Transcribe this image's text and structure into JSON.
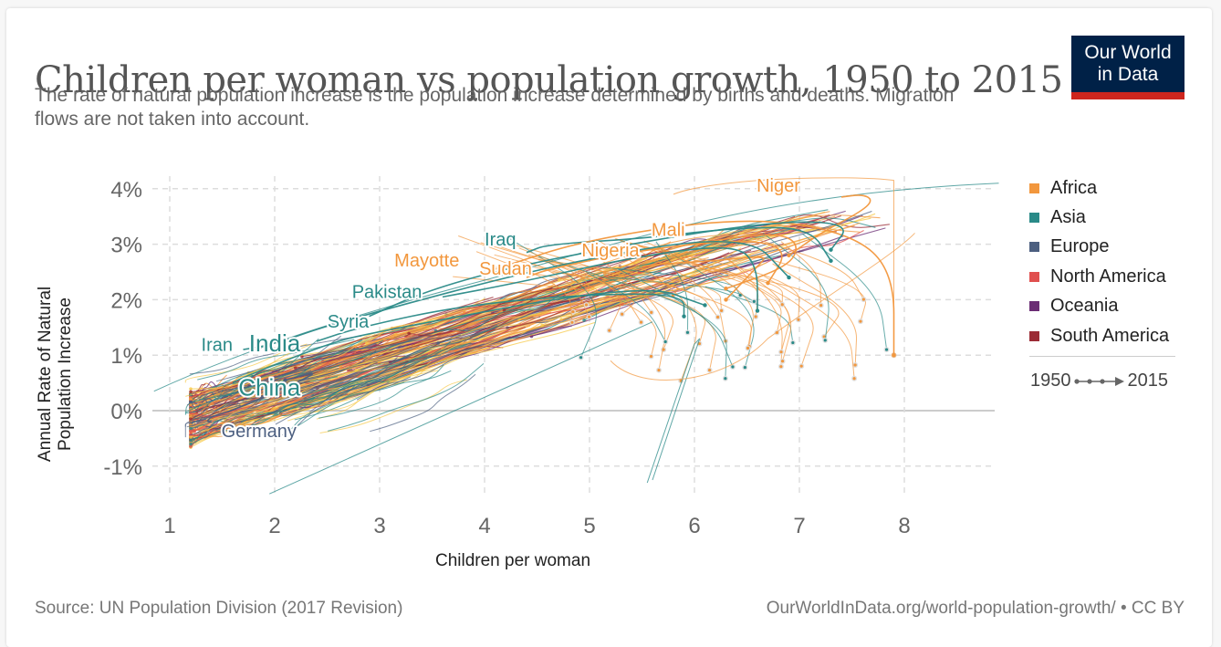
{
  "header": {
    "title": "Children per woman vs population growth, 1950 to 2015",
    "subtitle": "The rate of natural population increase is the population increase determined by births and deaths. Migration flows are not taken into account.",
    "logo_line1": "Our World",
    "logo_line2": "in Data"
  },
  "legend": {
    "items": [
      {
        "label": "Africa",
        "color": "#f2973d"
      },
      {
        "label": "Asia",
        "color": "#2a8a88"
      },
      {
        "label": "Europe",
        "color": "#4c5f80"
      },
      {
        "label": "North America",
        "color": "#e0504f"
      },
      {
        "label": "Oceania",
        "color": "#6b2d74"
      },
      {
        "label": "South America",
        "color": "#9b2b35"
      }
    ],
    "timeline_start": "1950",
    "timeline_end": "2015"
  },
  "footer": {
    "source": "Source: UN Population Division (2017 Revision)",
    "link": "OurWorldInData.org/world-population-growth/",
    "license": " • CC BY"
  },
  "chart_data": {
    "type": "scatter",
    "connected": true,
    "title": "Children per woman vs population growth, 1950 to 2015",
    "xlabel": "Children per woman",
    "ylabel": "Annual Rate of Natural Population Increase",
    "xlim": [
      0.85,
      8.9
    ],
    "ylim": [
      -1.5,
      4.2
    ],
    "x_ticks": [
      1,
      2,
      3,
      4,
      5,
      6,
      7,
      8
    ],
    "x_tick_labels": [
      "1",
      "2",
      "3",
      "4",
      "5",
      "6",
      "7",
      "8"
    ],
    "y_ticks": [
      4,
      3,
      2,
      1,
      0,
      -1
    ],
    "y_tick_labels": [
      "4%",
      "3%",
      "2%",
      "1%",
      "0%",
      "-1%"
    ],
    "grid": true,
    "legend_position": "right",
    "time_range": [
      "1950",
      "2015"
    ],
    "highlight_color_africa_alt": "#f7c948",
    "annotations": [
      {
        "label": "Niger",
        "region": "Africa",
        "x": 6.8,
        "y": 3.95
      },
      {
        "label": "Mali",
        "region": "Africa",
        "x": 5.75,
        "y": 3.15
      },
      {
        "label": "Nigeria",
        "region": "Africa",
        "x": 5.2,
        "y": 2.78
      },
      {
        "label": "Iraq",
        "region": "Asia",
        "x": 4.15,
        "y": 2.98
      },
      {
        "label": "Mayotte",
        "region": "Africa",
        "x": 3.45,
        "y": 2.6
      },
      {
        "label": "Sudan",
        "region": "Africa",
        "x": 4.2,
        "y": 2.45
      },
      {
        "label": "Pakistan",
        "region": "Asia",
        "x": 3.07,
        "y": 2.03
      },
      {
        "label": "Syria",
        "region": "Asia",
        "x": 2.7,
        "y": 1.5
      },
      {
        "label": "Iran",
        "region": "Asia",
        "x": 1.45,
        "y": 1.08
      },
      {
        "label": "India",
        "region": "Asia",
        "x": 2.0,
        "y": 1.07,
        "large": true
      },
      {
        "label": "China",
        "region": "Asia",
        "x": 1.95,
        "y": 0.27,
        "large": true
      },
      {
        "label": "Germany",
        "region": "Europe",
        "x": 1.85,
        "y": -0.48
      }
    ],
    "series": [
      {
        "name": "Niger",
        "region": "Africa",
        "points": [
          [
            6.9,
            2.8
          ],
          [
            7.2,
            3.2
          ],
          [
            7.6,
            3.6
          ],
          [
            7.7,
            3.8
          ],
          [
            7.6,
            3.9
          ],
          [
            7.4,
            3.85
          ]
        ]
      },
      {
        "name": "Mali",
        "region": "Africa",
        "points": [
          [
            6.3,
            2.2
          ],
          [
            6.9,
            2.6
          ],
          [
            7.0,
            3.0
          ],
          [
            6.8,
            3.2
          ],
          [
            6.3,
            3.1
          ],
          [
            6.0,
            3.0
          ]
        ]
      },
      {
        "name": "Nigeria",
        "region": "Africa",
        "points": [
          [
            6.3,
            2.0
          ],
          [
            6.6,
            2.6
          ],
          [
            6.7,
            2.8
          ],
          [
            6.2,
            2.7
          ],
          [
            5.7,
            2.65
          ],
          [
            5.5,
            2.6
          ]
        ]
      },
      {
        "name": "Iraq",
        "region": "Asia",
        "points": [
          [
            7.3,
            2.7
          ],
          [
            7.1,
            3.3
          ],
          [
            6.4,
            3.3
          ],
          [
            5.5,
            3.1
          ],
          [
            4.6,
            3.0
          ],
          [
            4.4,
            2.85
          ]
        ]
      },
      {
        "name": "Mayotte",
        "region": "Africa",
        "points": [
          [
            7.9,
            1.0
          ],
          [
            7.9,
            2.5
          ],
          [
            7.5,
            3.2
          ],
          [
            6.5,
            3.5
          ],
          [
            5.0,
            3.1
          ],
          [
            4.1,
            2.55
          ]
        ]
      },
      {
        "name": "Sudan",
        "region": "Africa",
        "points": [
          [
            6.7,
            2.3
          ],
          [
            6.9,
            2.9
          ],
          [
            6.5,
            3.1
          ],
          [
            5.5,
            2.9
          ],
          [
            4.6,
            2.55
          ],
          [
            4.4,
            2.4
          ]
        ]
      },
      {
        "name": "Pakistan",
        "region": "Asia",
        "points": [
          [
            6.6,
            1.8
          ],
          [
            6.6,
            2.6
          ],
          [
            6.4,
            3.0
          ],
          [
            5.5,
            2.8
          ],
          [
            4.3,
            2.3
          ],
          [
            3.6,
            2.05
          ]
        ]
      },
      {
        "name": "Syria",
        "region": "Asia",
        "points": [
          [
            7.3,
            2.9
          ],
          [
            7.5,
            3.4
          ],
          [
            6.6,
            3.4
          ],
          [
            4.5,
            2.7
          ],
          [
            3.5,
            2.2
          ],
          [
            2.9,
            1.7
          ]
        ]
      },
      {
        "name": "Iran",
        "region": "Asia",
        "points": [
          [
            6.9,
            2.4
          ],
          [
            6.5,
            3.2
          ],
          [
            4.8,
            2.7
          ],
          [
            2.6,
            1.6
          ],
          [
            2.0,
            1.2
          ],
          [
            1.7,
            1.1
          ]
        ]
      },
      {
        "name": "India",
        "region": "Asia",
        "points": [
          [
            5.9,
            1.7
          ],
          [
            5.9,
            2.1
          ],
          [
            5.0,
            2.1
          ],
          [
            3.8,
            1.9
          ],
          [
            2.8,
            1.5
          ],
          [
            2.4,
            1.25
          ]
        ]
      },
      {
        "name": "China",
        "region": "Asia",
        "points": [
          [
            6.1,
            1.9
          ],
          [
            5.5,
            2.3
          ],
          [
            2.9,
            1.4
          ],
          [
            2.5,
            1.2
          ],
          [
            1.7,
            0.6
          ],
          [
            1.6,
            0.5
          ]
        ]
      },
      {
        "name": "Germany",
        "region": "Europe",
        "points": [
          [
            2.1,
            0.55
          ],
          [
            2.5,
            0.75
          ],
          [
            1.6,
            0.0
          ],
          [
            1.4,
            -0.1
          ],
          [
            1.35,
            -0.2
          ],
          [
            1.4,
            -0.2
          ]
        ]
      }
    ]
  }
}
